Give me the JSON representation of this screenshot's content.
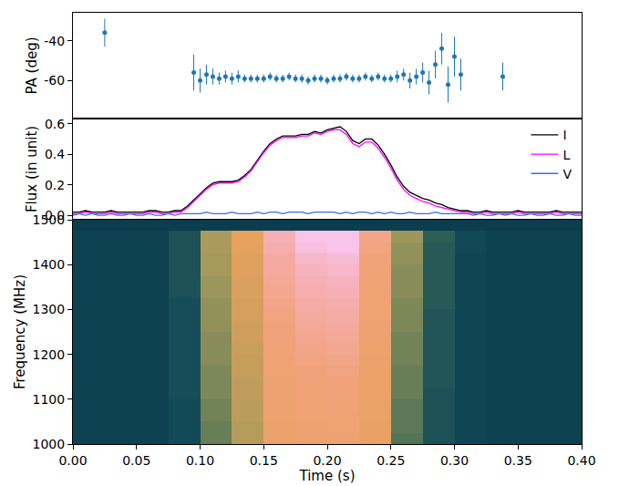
{
  "chart_data": [
    {
      "type": "scatter",
      "y_label": "PA (deg)",
      "color": "#1f77b4",
      "marker": "circle",
      "xlim": [
        0,
        0.4
      ],
      "ylim": [
        -79,
        -26
      ],
      "yticks": [
        -60,
        -40
      ],
      "grid": false,
      "tick_labels": "y",
      "x": [
        0.025,
        0.095,
        0.1,
        0.105,
        0.11,
        0.115,
        0.12,
        0.125,
        0.13,
        0.135,
        0.14,
        0.145,
        0.15,
        0.155,
        0.16,
        0.165,
        0.17,
        0.175,
        0.18,
        0.185,
        0.19,
        0.195,
        0.2,
        0.205,
        0.21,
        0.215,
        0.22,
        0.225,
        0.23,
        0.235,
        0.24,
        0.245,
        0.25,
        0.255,
        0.26,
        0.265,
        0.27,
        0.275,
        0.28,
        0.285,
        0.29,
        0.295,
        0.3,
        0.305,
        0.338
      ],
      "values": [
        -36,
        -56,
        -60,
        -57,
        -58,
        -59,
        -58,
        -59,
        -58,
        -59,
        -59,
        -59,
        -59,
        -58,
        -59,
        -59,
        -58,
        -59,
        -59,
        -60,
        -59,
        -59,
        -60,
        -59,
        -59,
        -58,
        -59,
        -59,
        -58,
        -59,
        -58,
        -59,
        -59,
        -58,
        -57,
        -60,
        -58,
        -56,
        -61,
        -52,
        -44,
        -62,
        -48,
        -57,
        -58
      ],
      "errors": [
        7,
        9,
        6,
        5,
        4,
        3,
        3,
        3,
        3,
        2,
        2,
        2,
        2,
        2,
        2,
        2,
        2,
        2,
        2,
        2,
        2,
        2,
        2,
        2,
        2,
        2,
        2,
        2,
        2,
        2,
        2,
        2,
        2,
        3,
        3,
        4,
        4,
        5,
        6,
        7,
        8,
        9,
        10,
        8,
        7
      ]
    },
    {
      "type": "line",
      "y_label": "Flux (in unit)",
      "legend": "upper right",
      "xlim": [
        0,
        0.4
      ],
      "ylim": [
        -0.03,
        0.635
      ],
      "yticks": [
        {
          "value": 0,
          "label": "0.0"
        },
        0.2,
        0.4,
        0.6
      ],
      "grid": false,
      "tick_labels": "y",
      "x": [
        0,
        0.005,
        0.01,
        0.015,
        0.02,
        0.025,
        0.03,
        0.035,
        0.04,
        0.045,
        0.05,
        0.055,
        0.06,
        0.065,
        0.07,
        0.075,
        0.08,
        0.085,
        0.09,
        0.095,
        0.1,
        0.105,
        0.11,
        0.115,
        0.12,
        0.125,
        0.13,
        0.135,
        0.14,
        0.145,
        0.15,
        0.155,
        0.16,
        0.165,
        0.17,
        0.175,
        0.18,
        0.185,
        0.19,
        0.195,
        0.2,
        0.205,
        0.21,
        0.215,
        0.22,
        0.225,
        0.23,
        0.235,
        0.24,
        0.245,
        0.25,
        0.255,
        0.26,
        0.265,
        0.27,
        0.275,
        0.28,
        0.285,
        0.29,
        0.295,
        0.3,
        0.305,
        0.31,
        0.315,
        0.32,
        0.325,
        0.33,
        0.335,
        0.34,
        0.345,
        0.35,
        0.355,
        0.36,
        0.365,
        0.37,
        0.375,
        0.38,
        0.385,
        0.39,
        0.395,
        0.4
      ],
      "series": [
        {
          "name": "I",
          "color": "#000000",
          "values": [
            0.02,
            0.02,
            0.03,
            0.02,
            0.02,
            0.02,
            0.03,
            0.02,
            0.02,
            0.02,
            0.02,
            0.02,
            0.03,
            0.03,
            0.02,
            0.02,
            0.03,
            0.03,
            0.06,
            0.1,
            0.14,
            0.18,
            0.21,
            0.22,
            0.22,
            0.22,
            0.23,
            0.26,
            0.3,
            0.36,
            0.42,
            0.47,
            0.5,
            0.52,
            0.52,
            0.52,
            0.53,
            0.53,
            0.55,
            0.54,
            0.56,
            0.57,
            0.58,
            0.55,
            0.49,
            0.47,
            0.5,
            0.5,
            0.46,
            0.4,
            0.33,
            0.25,
            0.19,
            0.15,
            0.13,
            0.11,
            0.1,
            0.08,
            0.07,
            0.05,
            0.04,
            0.03,
            0.03,
            0.02,
            0.02,
            0.03,
            0.02,
            0.02,
            0.02,
            0.02,
            0.03,
            0.02,
            0.02,
            0.02,
            0.02,
            0.02,
            0.03,
            0.02,
            0.02,
            0.02,
            0.02
          ]
        },
        {
          "name": "L",
          "color": "#ff00ff",
          "values": [
            0.01,
            0.01,
            0.02,
            0.01,
            0.01,
            0.01,
            0.02,
            0.01,
            0.01,
            0.01,
            0.01,
            0.01,
            0.02,
            0.02,
            0.01,
            0.01,
            0.02,
            0.02,
            0.05,
            0.09,
            0.13,
            0.17,
            0.2,
            0.21,
            0.21,
            0.21,
            0.22,
            0.25,
            0.29,
            0.35,
            0.41,
            0.46,
            0.49,
            0.51,
            0.51,
            0.51,
            0.52,
            0.52,
            0.54,
            0.53,
            0.55,
            0.56,
            0.56,
            0.53,
            0.47,
            0.45,
            0.48,
            0.48,
            0.44,
            0.38,
            0.31,
            0.23,
            0.17,
            0.13,
            0.11,
            0.09,
            0.08,
            0.06,
            0.05,
            0.04,
            0.03,
            0.02,
            0.02,
            0.01,
            0.01,
            0.02,
            0.01,
            0.01,
            0.01,
            0.01,
            0.02,
            0.01,
            0.01,
            0.01,
            0.01,
            0.01,
            0.02,
            0.01,
            0.01,
            0.01,
            0.01
          ]
        },
        {
          "name": "V",
          "color": "#4169e1",
          "values": [
            0,
            0.01,
            0,
            0.01,
            0,
            0,
            0.01,
            0,
            0,
            0.01,
            0,
            0,
            0.01,
            0,
            0,
            0.01,
            0,
            0.01,
            0.01,
            0.01,
            0.01,
            0.02,
            0.01,
            0.01,
            0.01,
            0.02,
            0.01,
            0.01,
            0.01,
            0.02,
            0.01,
            0.02,
            0.02,
            0.01,
            0.02,
            0.02,
            0.02,
            0.01,
            0.02,
            0.02,
            0.02,
            0.02,
            0.01,
            0.02,
            0.01,
            0.02,
            0.02,
            0.01,
            0.02,
            0.01,
            0.02,
            0.01,
            0.01,
            0.02,
            0.01,
            0.01,
            0.01,
            0.02,
            0.01,
            0.01,
            0.01,
            0.01,
            0.01,
            0,
            0.01,
            0,
            0,
            0.01,
            0,
            0.01,
            0,
            0,
            0.01,
            0,
            0,
            0.01,
            0,
            0,
            0.01,
            0,
            0
          ]
        }
      ]
    },
    {
      "type": "heatmap",
      "x_label": "Time (s)",
      "y_label": "Frequency (MHz)",
      "grid": false,
      "xlim": [
        0,
        0.4
      ],
      "ylim": [
        1000,
        1500
      ],
      "xticks": [
        {
          "value": 0,
          "label": "0.00"
        },
        {
          "value": 0.05,
          "label": "0.05"
        },
        {
          "value": 0.1,
          "label": "0.10"
        },
        {
          "value": 0.15,
          "label": "0.15"
        },
        {
          "value": 0.2,
          "label": "0.20"
        },
        {
          "value": 0.25,
          "label": "0.25"
        },
        {
          "value": 0.3,
          "label": "0.30"
        },
        {
          "value": 0.35,
          "label": "0.35"
        },
        {
          "value": 0.4,
          "label": "0.40"
        }
      ],
      "yticks": [
        1000,
        1100,
        1200,
        1300,
        1400,
        1500
      ],
      "zlim": [
        0,
        0.65
      ],
      "x": [
        0.0125,
        0.0375,
        0.0625,
        0.0875,
        0.1125,
        0.1375,
        0.1625,
        0.1875,
        0.2125,
        0.2375,
        0.2625,
        0.2875,
        0.3125,
        0.3375,
        0.3625,
        0.3875
      ],
      "y": [
        1012.5,
        1037.5,
        1062.5,
        1087.5,
        1112.5,
        1137.5,
        1162.5,
        1187.5,
        1212.5,
        1237.5,
        1262.5,
        1287.5,
        1312.5,
        1337.5,
        1362.5,
        1387.5,
        1412.5,
        1437.5,
        1462.5,
        1487.5
      ],
      "z": [
        [
          0.02,
          0.02,
          0.02,
          0.05,
          0.17,
          0.26,
          0.43,
          0.46,
          0.47,
          0.39,
          0.15,
          0.07,
          0.03,
          0.02,
          0.02,
          0.02
        ],
        [
          0.02,
          0.02,
          0.02,
          0.05,
          0.17,
          0.26,
          0.44,
          0.47,
          0.48,
          0.39,
          0.16,
          0.07,
          0.03,
          0.02,
          0.02,
          0.02
        ],
        [
          0.02,
          0.02,
          0.02,
          0.05,
          0.18,
          0.27,
          0.45,
          0.48,
          0.49,
          0.4,
          0.16,
          0.07,
          0.03,
          0.02,
          0.02,
          0.02
        ],
        [
          0.02,
          0.02,
          0.02,
          0.05,
          0.18,
          0.27,
          0.46,
          0.49,
          0.5,
          0.41,
          0.16,
          0.07,
          0.03,
          0.02,
          0.02,
          0.02
        ],
        [
          0.02,
          0.02,
          0.02,
          0.06,
          0.19,
          0.28,
          0.47,
          0.5,
          0.51,
          0.42,
          0.17,
          0.07,
          0.03,
          0.02,
          0.02,
          0.02
        ],
        [
          0.02,
          0.02,
          0.02,
          0.06,
          0.19,
          0.28,
          0.47,
          0.51,
          0.52,
          0.42,
          0.17,
          0.08,
          0.03,
          0.02,
          0.02,
          0.02
        ],
        [
          0.02,
          0.02,
          0.02,
          0.06,
          0.19,
          0.29,
          0.48,
          0.52,
          0.53,
          0.43,
          0.17,
          0.08,
          0.03,
          0.02,
          0.02,
          0.02
        ],
        [
          0.02,
          0.02,
          0.02,
          0.06,
          0.2,
          0.29,
          0.49,
          0.53,
          0.54,
          0.44,
          0.18,
          0.08,
          0.03,
          0.02,
          0.02,
          0.02
        ],
        [
          0.02,
          0.02,
          0.02,
          0.06,
          0.2,
          0.3,
          0.5,
          0.54,
          0.55,
          0.45,
          0.18,
          0.08,
          0.03,
          0.02,
          0.02,
          0.02
        ],
        [
          0.02,
          0.02,
          0.02,
          0.06,
          0.2,
          0.31,
          0.51,
          0.55,
          0.56,
          0.46,
          0.18,
          0.08,
          0.03,
          0.02,
          0.02,
          0.02
        ],
        [
          0.02,
          0.02,
          0.02,
          0.06,
          0.21,
          0.31,
          0.52,
          0.56,
          0.57,
          0.47,
          0.19,
          0.08,
          0.03,
          0.02,
          0.02,
          0.02
        ],
        [
          0.02,
          0.02,
          0.02,
          0.06,
          0.21,
          0.32,
          0.53,
          0.57,
          0.58,
          0.48,
          0.19,
          0.08,
          0.03,
          0.02,
          0.02,
          0.02
        ],
        [
          0.02,
          0.02,
          0.02,
          0.06,
          0.21,
          0.32,
          0.54,
          0.58,
          0.59,
          0.48,
          0.19,
          0.09,
          0.03,
          0.02,
          0.02,
          0.02
        ],
        [
          0.02,
          0.02,
          0.02,
          0.07,
          0.22,
          0.33,
          0.55,
          0.59,
          0.6,
          0.49,
          0.2,
          0.09,
          0.03,
          0.02,
          0.02,
          0.02
        ],
        [
          0.02,
          0.02,
          0.02,
          0.07,
          0.22,
          0.33,
          0.56,
          0.6,
          0.61,
          0.5,
          0.2,
          0.09,
          0.03,
          0.02,
          0.02,
          0.02
        ],
        [
          0.02,
          0.02,
          0.02,
          0.07,
          0.23,
          0.34,
          0.57,
          0.61,
          0.62,
          0.51,
          0.2,
          0.09,
          0.03,
          0.02,
          0.02,
          0.02
        ],
        [
          0.02,
          0.02,
          0.02,
          0.07,
          0.23,
          0.34,
          0.57,
          0.62,
          0.63,
          0.51,
          0.21,
          0.09,
          0.03,
          0.02,
          0.02,
          0.02
        ],
        [
          0.02,
          0.02,
          0.02,
          0.07,
          0.24,
          0.35,
          0.59,
          0.64,
          0.65,
          0.53,
          0.21,
          0.09,
          0.04,
          0.02,
          0.02,
          0.02
        ],
        [
          0.02,
          0.02,
          0.02,
          0.07,
          0.24,
          0.36,
          0.6,
          0.65,
          0.66,
          0.54,
          0.22,
          0.1,
          0.04,
          0.02,
          0.02,
          0.02
        ],
        [
          0,
          0,
          0,
          0,
          0,
          0,
          0,
          0,
          0,
          0,
          0,
          0,
          0,
          0,
          0,
          0
        ]
      ]
    }
  ]
}
